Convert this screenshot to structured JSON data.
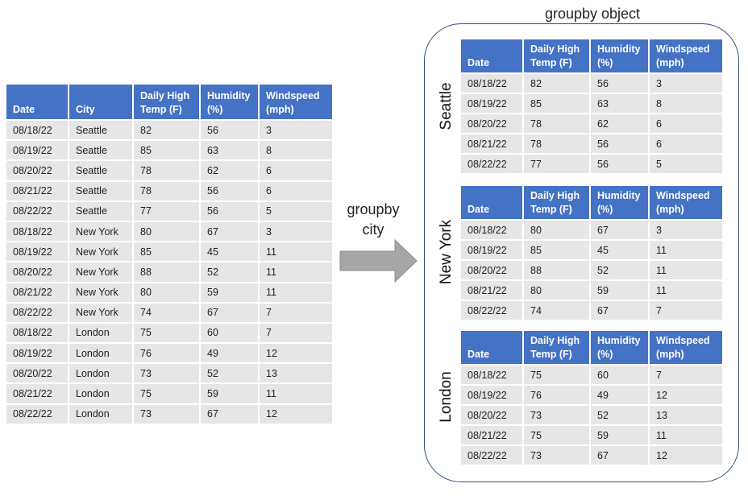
{
  "columns_full": [
    "Date",
    "City",
    "Daily High\nTemp (F)",
    "Humidity\n(%)",
    "Windspeed\n(mph)"
  ],
  "columns_group": [
    "Date",
    "Daily High\nTemp (F)",
    "Humidity\n(%)",
    "Windspeed\n(mph)"
  ],
  "rows": [
    [
      "08/18/22",
      "Seattle",
      "82",
      "56",
      "3"
    ],
    [
      "08/19/22",
      "Seattle",
      "85",
      "63",
      "8"
    ],
    [
      "08/20/22",
      "Seattle",
      "78",
      "62",
      "6"
    ],
    [
      "08/21/22",
      "Seattle",
      "78",
      "56",
      "6"
    ],
    [
      "08/22/22",
      "Seattle",
      "77",
      "56",
      "5"
    ],
    [
      "08/18/22",
      "New York",
      "80",
      "67",
      "3"
    ],
    [
      "08/19/22",
      "New York",
      "85",
      "45",
      "11"
    ],
    [
      "08/20/22",
      "New York",
      "88",
      "52",
      "11"
    ],
    [
      "08/21/22",
      "New York",
      "80",
      "59",
      "11"
    ],
    [
      "08/22/22",
      "New York",
      "74",
      "67",
      "7"
    ],
    [
      "08/18/22",
      "London",
      "75",
      "60",
      "7"
    ],
    [
      "08/19/22",
      "London",
      "76",
      "49",
      "12"
    ],
    [
      "08/20/22",
      "London",
      "73",
      "52",
      "13"
    ],
    [
      "08/21/22",
      "London",
      "75",
      "59",
      "11"
    ],
    [
      "08/22/22",
      "London",
      "73",
      "67",
      "12"
    ]
  ],
  "arrow_label": "groupby\ncity",
  "groupby_title": "groupby object",
  "groups": [
    {
      "city": "Seattle",
      "rows": [
        [
          "08/18/22",
          "82",
          "56",
          "3"
        ],
        [
          "08/19/22",
          "85",
          "63",
          "8"
        ],
        [
          "08/20/22",
          "78",
          "62",
          "6"
        ],
        [
          "08/21/22",
          "78",
          "56",
          "6"
        ],
        [
          "08/22/22",
          "77",
          "56",
          "5"
        ]
      ]
    },
    {
      "city": "New York",
      "rows": [
        [
          "08/18/22",
          "80",
          "67",
          "3"
        ],
        [
          "08/19/22",
          "85",
          "45",
          "11"
        ],
        [
          "08/20/22",
          "88",
          "52",
          "11"
        ],
        [
          "08/21/22",
          "80",
          "59",
          "11"
        ],
        [
          "08/22/22",
          "74",
          "67",
          "7"
        ]
      ]
    },
    {
      "city": "London",
      "rows": [
        [
          "08/18/22",
          "75",
          "60",
          "7"
        ],
        [
          "08/19/22",
          "76",
          "49",
          "12"
        ],
        [
          "08/20/22",
          "73",
          "52",
          "13"
        ],
        [
          "08/21/22",
          "75",
          "59",
          "11"
        ],
        [
          "08/22/22",
          "73",
          "67",
          "12"
        ]
      ]
    }
  ],
  "colors": {
    "header": "#4472c4",
    "cell": "#e6e6e6",
    "arrow": "#a6a6a6",
    "frame": "#2f4f7f"
  }
}
